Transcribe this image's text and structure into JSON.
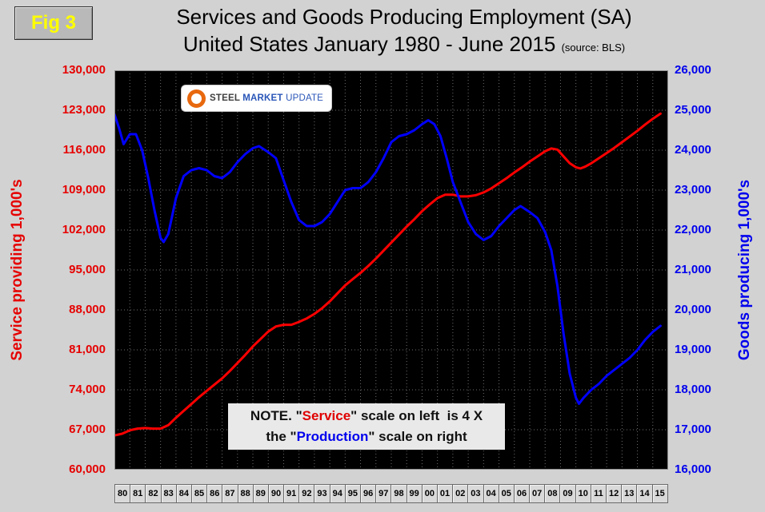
{
  "figure_label": "Fig 3",
  "title": {
    "line1": "Services and Goods Producing Employment (SA)",
    "line2": "United States January 1980 - June 2015",
    "source": "(source: BLS)"
  },
  "logo": {
    "word1": "STEEL",
    "word2": "MARKET",
    "word3": "UPDATE"
  },
  "note": {
    "line1_prefix": "NOTE. \"",
    "service_word": "Service",
    "line1_suffix": "\" scale on left  is 4 X",
    "line2_prefix": "the \"",
    "production_word": "Production",
    "line2_suffix": "\" scale on right"
  },
  "chart_data": {
    "type": "line",
    "title": "Services and Goods Producing Employment (SA), United States January 1980 - June 2015",
    "source": "BLS",
    "plot_background": "#000000",
    "grid": true,
    "grid_color": "#6e6e6e",
    "x_range": [
      1980,
      2016
    ],
    "x_tick_labels": [
      "80",
      "81",
      "82",
      "83",
      "84",
      "85",
      "86",
      "87",
      "88",
      "89",
      "90",
      "91",
      "92",
      "93",
      "94",
      "95",
      "96",
      "97",
      "98",
      "99",
      "00",
      "01",
      "02",
      "03",
      "04",
      "05",
      "06",
      "07",
      "08",
      "09",
      "10",
      "11",
      "12",
      "13",
      "14",
      "15"
    ],
    "axes": {
      "left": {
        "label": "Service providing 1,000's",
        "color": "#e60000",
        "range": [
          60000,
          130000
        ],
        "tick_step": 7000,
        "tick_labels": [
          "130,000",
          "123,000",
          "116,000",
          "109,000",
          "102,000",
          "95,000",
          "88,000",
          "81,000",
          "74,000",
          "67,000",
          "60,000"
        ]
      },
      "right": {
        "label": "Goods producing 1,000's",
        "color": "#0000ee",
        "range": [
          16000,
          26000
        ],
        "tick_step": 1000,
        "tick_labels": [
          "26,000",
          "25,000",
          "24,000",
          "23,000",
          "22,000",
          "21,000",
          "20,000",
          "19,000",
          "18,000",
          "17,000",
          "16,000"
        ]
      }
    },
    "series": [
      {
        "name": "Service providing employment (1,000's)",
        "axis": "left",
        "color": "#ff0000",
        "points": [
          [
            1980.0,
            66000
          ],
          [
            1980.5,
            66300
          ],
          [
            1981.0,
            66900
          ],
          [
            1981.5,
            67200
          ],
          [
            1982.0,
            67300
          ],
          [
            1982.5,
            67200
          ],
          [
            1983.0,
            67200
          ],
          [
            1983.5,
            67800
          ],
          [
            1984.0,
            69100
          ],
          [
            1984.5,
            70300
          ],
          [
            1985.0,
            71500
          ],
          [
            1985.5,
            72700
          ],
          [
            1986.0,
            73800
          ],
          [
            1986.5,
            74900
          ],
          [
            1987.0,
            76000
          ],
          [
            1987.5,
            77300
          ],
          [
            1988.0,
            78700
          ],
          [
            1988.5,
            80100
          ],
          [
            1989.0,
            81600
          ],
          [
            1989.5,
            82900
          ],
          [
            1990.0,
            84200
          ],
          [
            1990.5,
            85100
          ],
          [
            1991.0,
            85400
          ],
          [
            1991.5,
            85400
          ],
          [
            1992.0,
            85900
          ],
          [
            1992.5,
            86500
          ],
          [
            1993.0,
            87300
          ],
          [
            1993.5,
            88300
          ],
          [
            1994.0,
            89500
          ],
          [
            1994.5,
            90900
          ],
          [
            1995.0,
            92300
          ],
          [
            1995.5,
            93400
          ],
          [
            1996.0,
            94500
          ],
          [
            1996.5,
            95700
          ],
          [
            1997.0,
            97000
          ],
          [
            1997.5,
            98400
          ],
          [
            1998.0,
            99800
          ],
          [
            1998.5,
            101200
          ],
          [
            1999.0,
            102600
          ],
          [
            1999.5,
            103900
          ],
          [
            2000.0,
            105300
          ],
          [
            2000.5,
            106500
          ],
          [
            2001.0,
            107600
          ],
          [
            2001.5,
            108200
          ],
          [
            2002.0,
            108200
          ],
          [
            2002.5,
            107900
          ],
          [
            2003.0,
            107900
          ],
          [
            2003.5,
            108100
          ],
          [
            2004.0,
            108600
          ],
          [
            2004.5,
            109300
          ],
          [
            2005.0,
            110200
          ],
          [
            2005.5,
            111100
          ],
          [
            2006.0,
            112100
          ],
          [
            2006.5,
            113000
          ],
          [
            2007.0,
            114000
          ],
          [
            2007.5,
            114900
          ],
          [
            2008.0,
            115800
          ],
          [
            2008.4,
            116300
          ],
          [
            2008.8,
            116100
          ],
          [
            2009.2,
            114900
          ],
          [
            2009.6,
            113700
          ],
          [
            2010.0,
            113000
          ],
          [
            2010.3,
            112800
          ],
          [
            2010.6,
            113100
          ],
          [
            2011.0,
            113700
          ],
          [
            2011.5,
            114600
          ],
          [
            2012.0,
            115500
          ],
          [
            2012.5,
            116400
          ],
          [
            2013.0,
            117400
          ],
          [
            2013.5,
            118400
          ],
          [
            2014.0,
            119400
          ],
          [
            2014.5,
            120500
          ],
          [
            2015.0,
            121500
          ],
          [
            2015.5,
            122400
          ]
        ]
      },
      {
        "name": "Goods producing employment (1,000's)",
        "axis": "right",
        "color": "#0000ff",
        "points": [
          [
            1980.0,
            24900
          ],
          [
            1980.3,
            24550
          ],
          [
            1980.6,
            24150
          ],
          [
            1981.0,
            24400
          ],
          [
            1981.4,
            24400
          ],
          [
            1981.8,
            24000
          ],
          [
            1982.2,
            23300
          ],
          [
            1982.6,
            22500
          ],
          [
            1983.0,
            21800
          ],
          [
            1983.2,
            21700
          ],
          [
            1983.5,
            21900
          ],
          [
            1984.0,
            22800
          ],
          [
            1984.5,
            23350
          ],
          [
            1985.0,
            23500
          ],
          [
            1985.5,
            23550
          ],
          [
            1986.0,
            23500
          ],
          [
            1986.5,
            23350
          ],
          [
            1987.0,
            23300
          ],
          [
            1987.5,
            23450
          ],
          [
            1988.0,
            23700
          ],
          [
            1988.5,
            23900
          ],
          [
            1989.0,
            24050
          ],
          [
            1989.4,
            24100
          ],
          [
            1990.0,
            23950
          ],
          [
            1990.5,
            23800
          ],
          [
            1991.0,
            23250
          ],
          [
            1991.5,
            22700
          ],
          [
            1992.0,
            22250
          ],
          [
            1992.5,
            22100
          ],
          [
            1993.0,
            22100
          ],
          [
            1993.5,
            22200
          ],
          [
            1994.0,
            22400
          ],
          [
            1994.5,
            22700
          ],
          [
            1995.0,
            23000
          ],
          [
            1995.5,
            23050
          ],
          [
            1996.0,
            23050
          ],
          [
            1996.5,
            23200
          ],
          [
            1997.0,
            23450
          ],
          [
            1997.5,
            23800
          ],
          [
            1998.0,
            24200
          ],
          [
            1998.5,
            24350
          ],
          [
            1999.0,
            24400
          ],
          [
            1999.5,
            24500
          ],
          [
            2000.0,
            24650
          ],
          [
            2000.4,
            24750
          ],
          [
            2000.8,
            24650
          ],
          [
            2001.2,
            24350
          ],
          [
            2001.6,
            23800
          ],
          [
            2002.0,
            23200
          ],
          [
            2002.5,
            22700
          ],
          [
            2003.0,
            22200
          ],
          [
            2003.5,
            21900
          ],
          [
            2004.0,
            21750
          ],
          [
            2004.5,
            21850
          ],
          [
            2005.0,
            22100
          ],
          [
            2005.5,
            22300
          ],
          [
            2006.0,
            22500
          ],
          [
            2006.4,
            22600
          ],
          [
            2007.0,
            22450
          ],
          [
            2007.5,
            22300
          ],
          [
            2008.0,
            21950
          ],
          [
            2008.4,
            21500
          ],
          [
            2008.8,
            20600
          ],
          [
            2009.2,
            19400
          ],
          [
            2009.6,
            18400
          ],
          [
            2010.0,
            17800
          ],
          [
            2010.2,
            17650
          ],
          [
            2010.5,
            17800
          ],
          [
            2011.0,
            18000
          ],
          [
            2011.5,
            18150
          ],
          [
            2012.0,
            18350
          ],
          [
            2012.5,
            18500
          ],
          [
            2013.0,
            18650
          ],
          [
            2013.5,
            18800
          ],
          [
            2014.0,
            19000
          ],
          [
            2014.5,
            19250
          ],
          [
            2015.0,
            19450
          ],
          [
            2015.5,
            19600
          ]
        ]
      }
    ]
  }
}
